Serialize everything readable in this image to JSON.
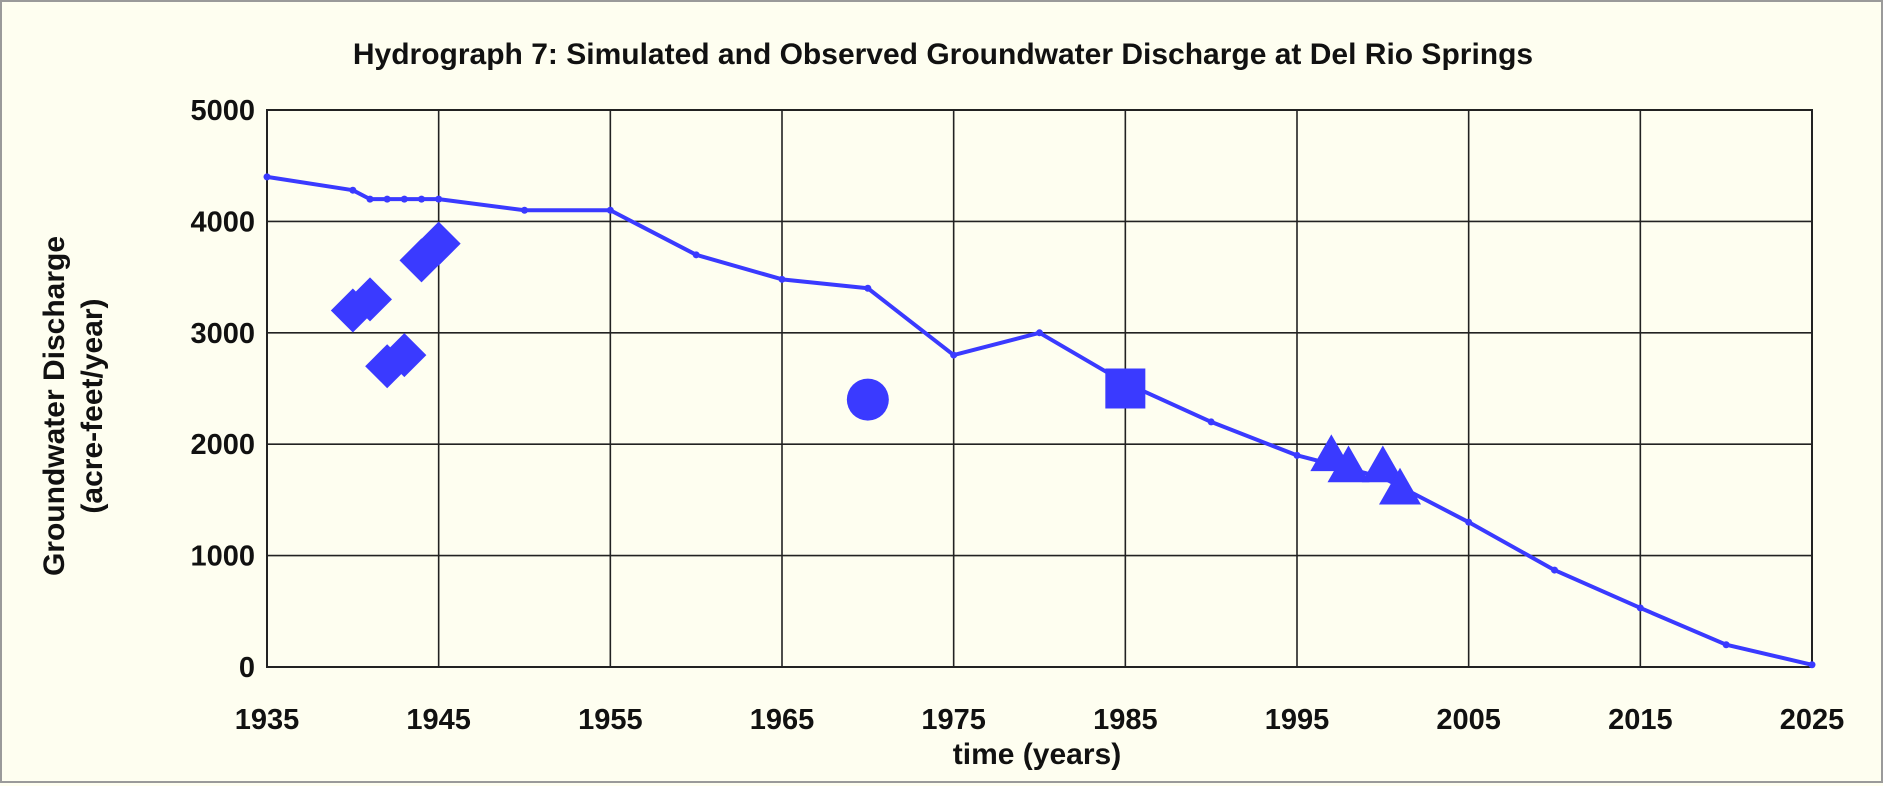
{
  "chart_data": {
    "type": "line",
    "title": "Hydrograph 7: Simulated and Observed Groundwater Discharge at Del Rio Springs",
    "xlabel": "time (years)",
    "ylabel_line1": "Groundwater Discharge",
    "ylabel_line2": "(acre-feet/year)",
    "xlim": [
      1935,
      2025
    ],
    "ylim": [
      0,
      5000
    ],
    "x_ticks": [
      "1935",
      "1945",
      "1955",
      "1965",
      "1975",
      "1985",
      "1995",
      "2005",
      "2015",
      "2025"
    ],
    "y_ticks": [
      "0",
      "1000",
      "2000",
      "3000",
      "4000",
      "5000"
    ],
    "grid": true,
    "color": "#3a3aff",
    "series": [
      {
        "kind": "line",
        "x": [
          1935,
          1940,
          1941,
          1942,
          1943,
          1944,
          1945,
          1950,
          1955,
          1960,
          1965,
          1970,
          1975,
          1980,
          1985,
          1990,
          1995,
          2000,
          2005,
          2010,
          2015,
          2020,
          2025
        ],
        "y": [
          4400,
          4280,
          4200,
          4200,
          4200,
          4200,
          4200,
          4100,
          4100,
          3700,
          3480,
          3400,
          2800,
          3000,
          2550,
          2200,
          1900,
          1700,
          1300,
          870,
          530,
          200,
          20
        ]
      },
      {
        "kind": "marker",
        "marker": "diamond",
        "x": [
          1940,
          1941,
          1942,
          1943,
          1944,
          1945
        ],
        "y": [
          3200,
          3300,
          2700,
          2800,
          3650,
          3800
        ]
      },
      {
        "kind": "marker",
        "marker": "circle",
        "x": [
          1970
        ],
        "y": [
          2400
        ]
      },
      {
        "kind": "marker",
        "marker": "square",
        "x": [
          1985
        ],
        "y": [
          2500
        ]
      },
      {
        "kind": "marker",
        "marker": "triangle",
        "x": [
          1997,
          1998,
          2000,
          2001
        ],
        "y": [
          1900,
          1800,
          1800,
          1600
        ]
      }
    ]
  }
}
